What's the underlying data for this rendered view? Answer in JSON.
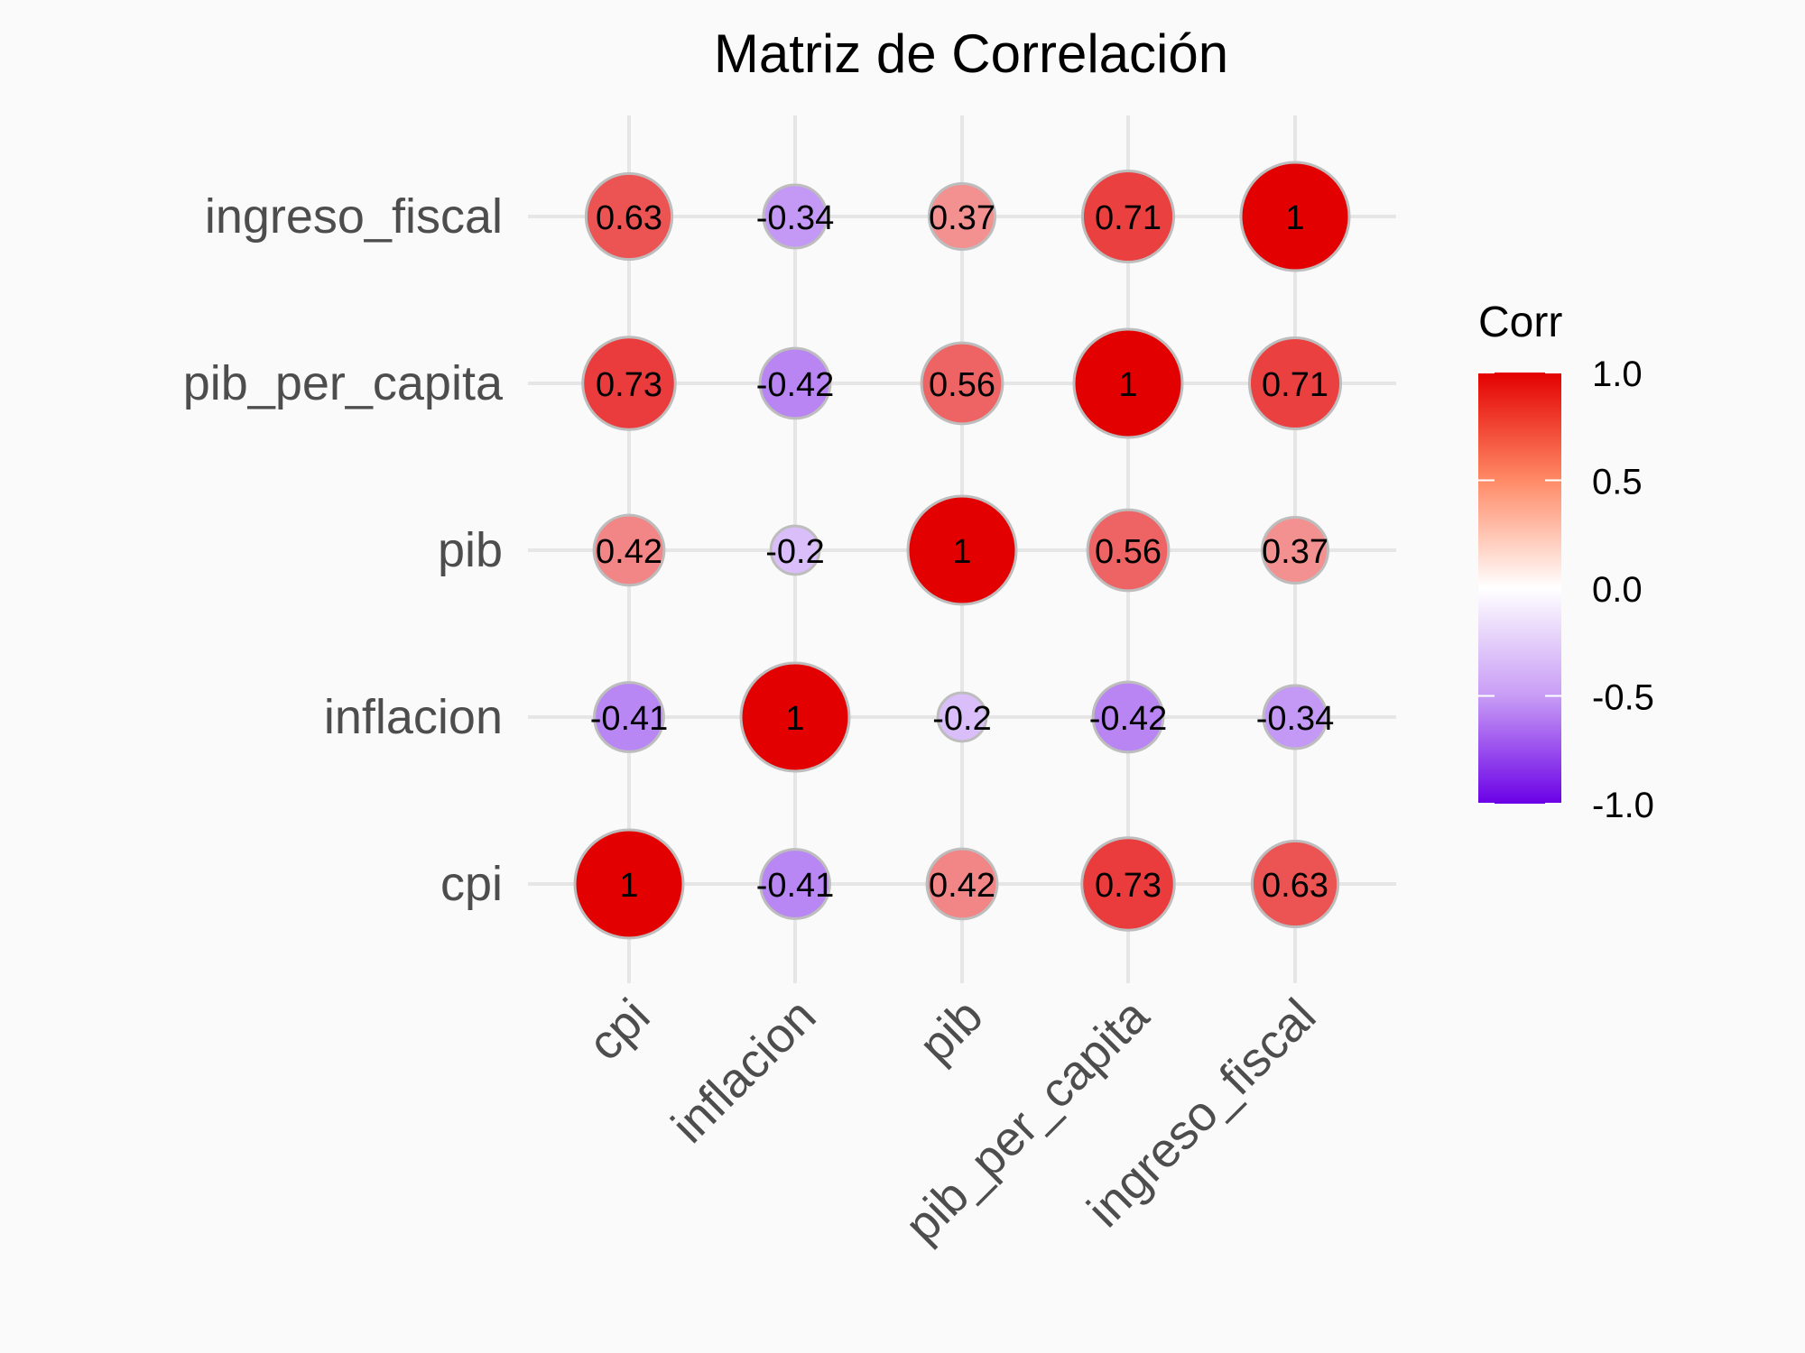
{
  "chart_data": {
    "type": "correlation-circle-matrix",
    "title": "Matriz de Correlación",
    "variables": [
      "cpi",
      "inflacion",
      "pib",
      "pib_per_capita",
      "ingreso_fiscal"
    ],
    "matrix": [
      [
        1,
        -0.41,
        0.42,
        0.73,
        0.63
      ],
      [
        -0.41,
        1,
        -0.2,
        -0.42,
        -0.34
      ],
      [
        0.42,
        -0.2,
        1,
        0.56,
        0.37
      ],
      [
        0.73,
        -0.42,
        0.56,
        1,
        0.71
      ],
      [
        0.63,
        -0.34,
        0.37,
        0.71,
        1
      ]
    ],
    "value_labels": [
      [
        "1",
        "-0.41",
        "0.42",
        "0.73",
        "0.63"
      ],
      [
        "-0.41",
        "1",
        "-0.2",
        "-0.42",
        "-0.34"
      ],
      [
        "0.42",
        "-0.2",
        "1",
        "0.56",
        "0.37"
      ],
      [
        "0.73",
        "-0.42",
        "0.56",
        "1",
        "0.71"
      ],
      [
        "0.63",
        "-0.34",
        "0.37",
        "0.71",
        "1"
      ]
    ],
    "legend": {
      "title": "Corr",
      "position": "right",
      "range": [
        -1,
        1
      ],
      "ticks": [
        1.0,
        0.5,
        0.0,
        -0.5,
        -1.0
      ],
      "tick_labels": [
        "1.0",
        "0.5",
        "0.0",
        "-0.5",
        "-1.0"
      ],
      "colors": {
        "low": "#6A00E6",
        "mid": "#FFFFFF",
        "high": "#E30000"
      }
    },
    "grid": true
  }
}
